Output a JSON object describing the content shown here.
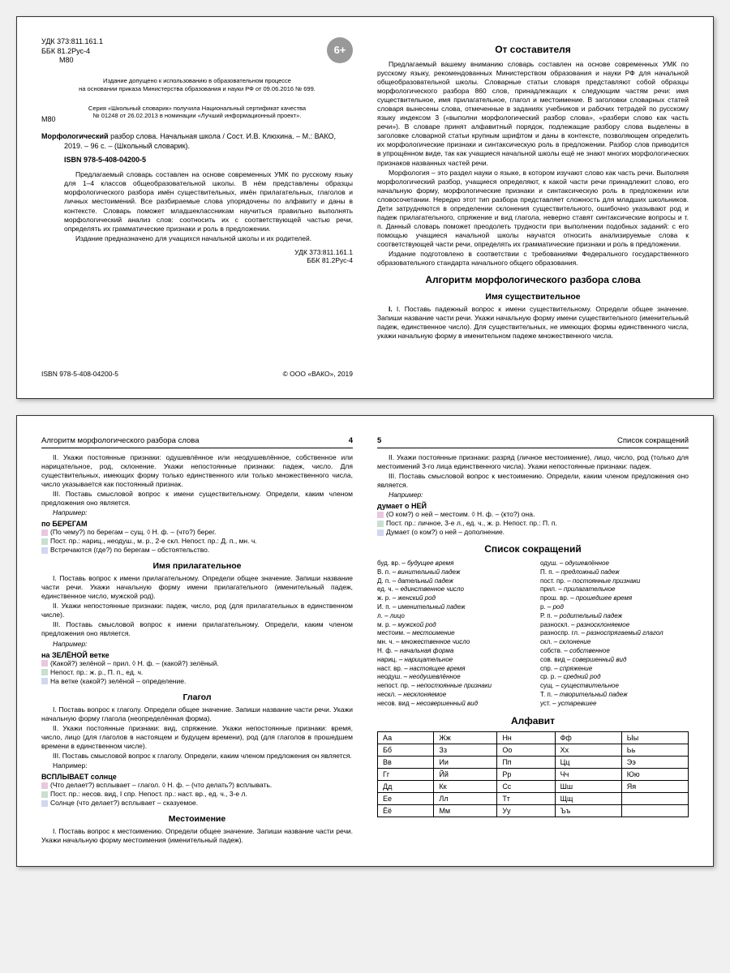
{
  "spread1": {
    "left": {
      "udk": "УДК 373:811.161.1",
      "bbk": "ББК 81.2Рус-4",
      "m80": "М80",
      "age_badge": "6+",
      "note1a": "Издание допущено к использованию в образовательном процессе",
      "note1b": "на основании приказа Министерства образования и науки РФ от 09.06.2016 № 699.",
      "note2a": "Серия «Школьный словарик» получила Национальный сертификат качества",
      "note2b": "№ 01248 от 26.02.2013 в номинации «Лучший информационный проект».",
      "bib1": "Морфологический",
      "bib2": " разбор слова. Начальная школа / Сост. И.В. Клюхина. – М.: ВАКО, 2019. – 96 с. – (Школьный словарик).",
      "bib_prefix": "М80",
      "isbn": "ISBN 978-5-408-04200-5",
      "p1": "Предлагаемый словарь составлен на основе современных УМК по русскому языку для 1–4 классов общеобразовательной школы. В нём представлены образцы морфологического разбора имён существительных, имён прилагательных, глаголов и личных местоимений. Все разбираемые слова упорядочены по алфавиту и даны в контексте. Словарь поможет младшеклассникам научиться правильно выполнять морфологический анализ слов: соотносить их с соответствующей частью речи, определять их грамматические признаки и роль в предложении.",
      "p2": "Издание предназначено для учащихся начальной школы и их родителей.",
      "codes_r1": "УДК 373:811.161.1",
      "codes_r2": "ББК 81.2Рус-4",
      "foot_l": "ISBN 978-5-408-04200-5",
      "foot_r": "© ООО «ВАКО», 2019"
    },
    "right": {
      "h1": "От составителя",
      "p1": "Предлагаемый вашему вниманию словарь составлен на основе современных УМК по русскому языку, рекомендованных Министерством образования и науки РФ для начальной общеобразовательной школы. Словарные статьи словаря представляют собой образцы морфологического разбора 860 слов, принадлежащих к следующим частям речи: имя существительное, имя прилагательное, глагол и местоимение. В заголовки словарных статей словаря вынесены слова, отмеченные в заданиях учебников и рабочих тетрадей по русскому языку индексом 3 («выполни морфологический разбор слова», «разбери слово как часть речи»). В словаре принят алфавитный порядок, подлежащие разбору слова выделены в заголовке словарной статьи крупным шрифтом и даны в контексте, позволяющем определить их морфологические признаки и синтаксическую роль в предложении. Разбор слов приводится в упрощённом виде, так как учащиеся начальной школы ещё не знают многих морфологических признаков названных частей речи.",
      "p2": "Морфология – это раздел науки о языке, в котором изучают слово как часть речи. Выполняя морфологический разбор, учащиеся определяют, к какой части речи принадлежит слово, его начальную форму, морфологические признаки и синтаксическую роль в предложении или словосочетании. Нередко этот тип разбора представляет сложность для младших школьников. Дети затрудняются в определении склонения существительного, ошибочно указывают род и падеж прилагательного, спряжение и вид глагола, неверно ставят синтаксические вопросы и т. п. Данный словарь поможет преодолеть трудности при выполнении подобных заданий: с его помощью учащиеся начальной школы научатся относить анализируемые слова к соответствующей части речи, определять их грамматические признаки и роль в предложении.",
      "p3": "Издание подготовлено в соответствии с требованиями Федерального государственного образовательного стандарта начального общего образования.",
      "h2": "Алгоритм морфологического разбора слова",
      "h3": "Имя существительное",
      "pI": "I. Поставь падежный вопрос к имени существительному. Определи общее значение. Запиши название части речи. Укажи начальную форму имени существительного (именительный падеж, единственное число). Для существительных, не имеющих формы единственного числа, укажи начальную форму в именительном падеже множественного числа."
    }
  },
  "spread2": {
    "left": {
      "run_t": "Алгоритм морфологического разбора слова",
      "run_n": "4",
      "pII": "II. Укажи постоянные признаки: одушевлённое или неодушевлённое, собственное или нарицательное, род, склонение. Укажи непостоянные признаки: падеж, число. Для существительных, имеющих форму только единственного или только множественного числа, число указывается как постоянный признак.",
      "pIII": "III. Поставь смысловой вопрос к имени существительному. Определи, каким членом предложения оно является.",
      "napr": "Например:",
      "ex1": "по БЕРЕГАМ",
      "ex1_1": "(По чему?) по берегам – сущ. ◊ Н. ф. – (что?) берег.",
      "ex1_2": "Пост. пр.: нариц., неодуш., м. р., 2-е скл. Непост. пр.: Д. п., мн. ч.",
      "ex1_3": "Встречаются (где?) по берегам – обстоятельство.",
      "h_adj": "Имя прилагательное",
      "adj_I": "I. Поставь вопрос к имени прилагательному. Определи общее значение. Запиши название части речи. Укажи начальную форму имени прилагательного (именительный падеж, единственное число, мужской род).",
      "adj_II": "II. Укажи непостоянные признаки: падеж, число, род (для прилагательных в единственном числе).",
      "adj_III": "III. Поставь смысловой вопрос к имени прилагательному. Определи, каким членом предложения оно является.",
      "ex2": "на ЗЕЛЁНОЙ ветке",
      "ex2_1": "(Какой?) зелёной – прил. ◊ Н. ф. – (какой?) зелёный.",
      "ex2_2": "Непост. пр.: ж. р., П. п., ед. ч.",
      "ex2_3": "На ветке (какой?) зелёной – определение.",
      "h_verb": "Глагол",
      "v_I": "I. Поставь вопрос к глаголу. Определи общее значение. Запиши название части речи. Укажи начальную форму глагола (неопределённая форма).",
      "v_II": "II. Укажи постоянные признаки: вид, спряжение. Укажи непостоянные признаки: время, число, лицо (для глаголов в настоящем и будущем времени), род (для глаголов в прошедшем времени в единственном числе).",
      "v_III": "III. Поставь смысловой вопрос к глаголу. Определи, каким членом предложения он является.",
      "ex3": "ВСПЛЫВАЕТ солнце",
      "ex3_1": "(Что делает?) всплывает – глагол. ◊ Н. ф. – (что делать?) всплывать.",
      "ex3_2": "Пост. пр.: несов. вид, I спр. Непост. пр.: наст. вр., ед. ч., 3-е л.",
      "ex3_3": "Солнце (что делает?) всплывает – сказуемое.",
      "h_pron": "Местоимение",
      "pr_I": "I. Поставь вопрос к местоимению. Определи общее значение. Запиши название части речи. Укажи начальную форму местоимения (именительный падеж)."
    },
    "right": {
      "run_n": "5",
      "run_t": "Список сокращений",
      "pII": "II. Укажи постоянные признаки: разряд (личное местоимение), лицо, число, род (только для местоимений 3-го лица единственного числа). Укажи непостоянные признаки: падеж.",
      "pIII": "III. Поставь смысловой вопрос к местоимению. Определи, каким членом предложения оно является.",
      "napr": "Например:",
      "ex": "думает о НЕЙ",
      "ex_1": "(О ком?) о ней – местоим. ◊ Н. ф. – (кто?) она.",
      "ex_2": "Пост. пр.: личное, 3-е л., ед. ч., ж. р. Непост. пр.: П. п.",
      "ex_3": "Думает (о ком?) о ней – дополнение.",
      "h_abbr": "Список сокращений",
      "abbr_left": [
        "буд. вр. – будущее время",
        "В. п. – винительный падеж",
        "Д. п. – дательный падеж",
        "ед. ч. – единственное число",
        "ж. р. – женский род",
        "И. п. – именительный падеж",
        "л. – лицо",
        "м. р. – мужской род",
        "местоим. – местоимение",
        "мн. ч. – множественное число",
        "Н. ф. – начальная форма",
        "нариц. – нарицательное",
        "наст. вр. – настоящее время",
        "неодуш. – неодушевлённое",
        "непост. пр. – непостоянные признаки",
        "нескл. – несклоняемое",
        "несов. вид – несовершенный вид"
      ],
      "abbr_right": [
        "одуш. – одушевлённое",
        "П. п. – предложный падеж",
        "пост. пр. – постоянные признаки",
        "прил. – прилагательное",
        "прош. вр. – прошедшее время",
        "р. – род",
        "Р. п. – родительный падеж",
        "разноскл. – разносклоняемое",
        "разноспр. гл. – разноспрягаемый глагол",
        "скл. – склонение",
        "собств. – собственное",
        "сов. вид – совершенный вид",
        "спр. – спряжение",
        "ср. р. – средний род",
        "сущ. – существительное",
        "Т. п. – творительный падеж",
        "уст. – устаревшее"
      ],
      "h_alpha": "Алфавит",
      "alphabet": [
        [
          "Аа",
          "Жж",
          "Нн",
          "Фф",
          "Ыы"
        ],
        [
          "Бб",
          "Зз",
          "Оо",
          "Хх",
          "Ьь"
        ],
        [
          "Вв",
          "Ии",
          "Пп",
          "Цц",
          "Ээ"
        ],
        [
          "Гг",
          "Йй",
          "Рр",
          "Чч",
          "Юю"
        ],
        [
          "Дд",
          "Кк",
          "Сс",
          "Шш",
          "Яя"
        ],
        [
          "Ее",
          "Лл",
          "Тт",
          "Щщ",
          ""
        ],
        [
          "Ёё",
          "Мм",
          "Уу",
          "Ъъ",
          ""
        ]
      ]
    }
  }
}
